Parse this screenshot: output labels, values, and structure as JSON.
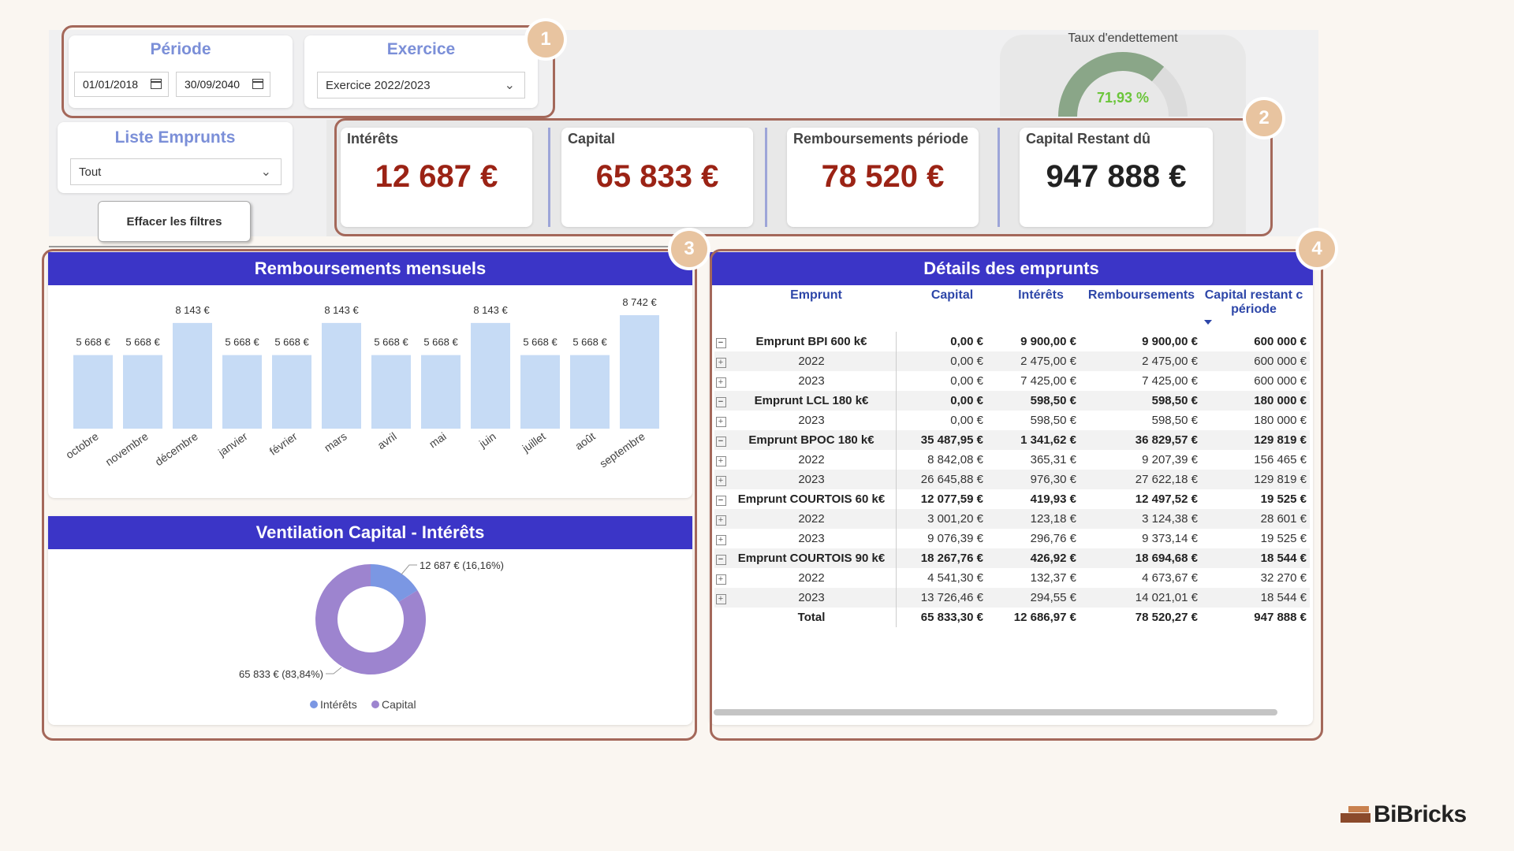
{
  "filters": {
    "periode": {
      "title": "Période",
      "start": "01/01/2018",
      "end": "30/09/2040"
    },
    "exercice": {
      "title": "Exercice",
      "value": "Exercice 2022/2023"
    },
    "liste": {
      "title": "Liste Emprunts",
      "value": "Tout"
    },
    "clear_button": "Effacer les filtres"
  },
  "gauge": {
    "title": "Taux d'endettement",
    "value": "71,93 %",
    "fraction": 0.7193,
    "color": "#8aa688"
  },
  "kpis": [
    {
      "label": "Intérêts",
      "value": "12 687 €",
      "color": "#9b2315"
    },
    {
      "label": "Capital",
      "value": "65 833 €",
      "color": "#9b2315"
    },
    {
      "label": "Remboursements période",
      "value": "78 520 €",
      "color": "#9b2315"
    },
    {
      "label": "Capital Restant dû",
      "value": "947 888 €",
      "color": "#222222"
    }
  ],
  "badges": [
    "1",
    "2",
    "3",
    "4"
  ],
  "bar_chart": {
    "title": "Remboursements mensuels",
    "chart_data": {
      "type": "bar",
      "categories": [
        "octobre",
        "novembre",
        "décembre",
        "janvier",
        "février",
        "mars",
        "avril",
        "mai",
        "juin",
        "juillet",
        "août",
        "septembre"
      ],
      "values": [
        5668,
        5668,
        8143,
        5668,
        5668,
        8143,
        5668,
        5668,
        8143,
        5668,
        5668,
        8742
      ],
      "labels": [
        "5 668 €",
        "5 668 €",
        "8 143 €",
        "5 668 €",
        "5 668 €",
        "8 143 €",
        "5 668 €",
        "5 668 €",
        "8 143 €",
        "5 668 €",
        "5 668 €",
        "8 742 €"
      ],
      "ylim": [
        0,
        8742
      ],
      "color": "#c6dbf5"
    }
  },
  "donut": {
    "title": "Ventilation Capital - Intérêts",
    "chart_data": {
      "type": "pie",
      "donut": true,
      "series": [
        {
          "name": "Intérêts",
          "value": 12687,
          "label": "12 687 € (16,16%)",
          "color": "#7b97e3"
        },
        {
          "name": "Capital",
          "value": 65833,
          "label": "65 833 € (83,84%)",
          "color": "#9d84cf"
        }
      ]
    }
  },
  "table": {
    "title": "Détails des emprunts",
    "headers": [
      "Emprunt",
      "Capital",
      "Intérêts",
      "Remboursements",
      "Capital restant c",
      "période"
    ],
    "rows": [
      {
        "type": "parent",
        "name": "Emprunt BPI 600 k€",
        "capital": "0,00 €",
        "interets": "9 900,00 €",
        "remb": "9 900,00 €",
        "crd": "600 000 €"
      },
      {
        "type": "child",
        "name": "2022",
        "capital": "0,00 €",
        "interets": "2 475,00 €",
        "remb": "2 475,00 €",
        "crd": "600 000 €"
      },
      {
        "type": "child",
        "name": "2023",
        "capital": "0,00 €",
        "interets": "7 425,00 €",
        "remb": "7 425,00 €",
        "crd": "600 000 €"
      },
      {
        "type": "parent",
        "name": "Emprunt LCL 180 k€",
        "capital": "0,00 €",
        "interets": "598,50 €",
        "remb": "598,50 €",
        "crd": "180 000 €"
      },
      {
        "type": "child",
        "name": "2023",
        "capital": "0,00 €",
        "interets": "598,50 €",
        "remb": "598,50 €",
        "crd": "180 000 €"
      },
      {
        "type": "parent",
        "name": "Emprunt BPOC 180 k€",
        "capital": "35 487,95 €",
        "interets": "1 341,62 €",
        "remb": "36 829,57 €",
        "crd": "129 819 €"
      },
      {
        "type": "child",
        "name": "2022",
        "capital": "8 842,08 €",
        "interets": "365,31 €",
        "remb": "9 207,39 €",
        "crd": "156 465 €"
      },
      {
        "type": "child",
        "name": "2023",
        "capital": "26 645,88 €",
        "interets": "976,30 €",
        "remb": "27 622,18 €",
        "crd": "129 819 €"
      },
      {
        "type": "parent",
        "name": "Emprunt COURTOIS 60 k€",
        "capital": "12 077,59 €",
        "interets": "419,93 €",
        "remb": "12 497,52 €",
        "crd": "19 525 €"
      },
      {
        "type": "child",
        "name": "2022",
        "capital": "3 001,20 €",
        "interets": "123,18 €",
        "remb": "3 124,38 €",
        "crd": "28 601 €"
      },
      {
        "type": "child",
        "name": "2023",
        "capital": "9 076,39 €",
        "interets": "296,76 €",
        "remb": "9 373,14 €",
        "crd": "19 525 €"
      },
      {
        "type": "parent",
        "name": "Emprunt COURTOIS 90 k€",
        "capital": "18 267,76 €",
        "interets": "426,92 €",
        "remb": "18 694,68 €",
        "crd": "18 544 €"
      },
      {
        "type": "child",
        "name": "2022",
        "capital": "4 541,30 €",
        "interets": "132,37 €",
        "remb": "4 673,67 €",
        "crd": "32 270 €"
      },
      {
        "type": "child",
        "name": "2023",
        "capital": "13 726,46 €",
        "interets": "294,55 €",
        "remb": "14 021,01 €",
        "crd": "18 544 €"
      },
      {
        "type": "total",
        "name": "Total",
        "capital": "65 833,30 €",
        "interets": "12 686,97 €",
        "remb": "78 520,27 €",
        "crd": "947 888 €"
      }
    ]
  },
  "brand": {
    "name": "BiBricks"
  }
}
